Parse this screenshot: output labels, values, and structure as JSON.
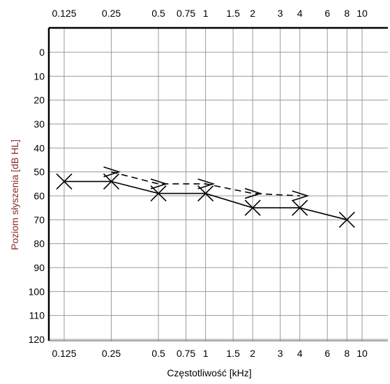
{
  "chart_data": {
    "type": "line",
    "xlabel": "Częstotliwość [kHz]",
    "ylabel": "Poziom słyszenia [dB HL]",
    "x_scale": "log",
    "xlim": [
      0.125,
      10
    ],
    "ylim": [
      120,
      -10
    ],
    "y_inverted": true,
    "grid": true,
    "x_ticks": [
      "0.125",
      "0.25",
      "0.5",
      "0.75",
      "1",
      "1.5",
      "2",
      "3",
      "4",
      "6",
      "8",
      "10"
    ],
    "y_ticks": [
      "0",
      "10",
      "20",
      "30",
      "40",
      "50",
      "60",
      "70",
      "80",
      "90",
      "100",
      "110",
      "120"
    ],
    "series": [
      {
        "marker": "x",
        "line_style": "solid",
        "x": [
          0.125,
          0.25,
          0.5,
          1,
          2,
          4,
          8
        ],
        "y": [
          54,
          54,
          59,
          59,
          65,
          65,
          70
        ]
      },
      {
        "marker": ">",
        "line_style": "dashed",
        "x": [
          0.25,
          0.5,
          1,
          2,
          4
        ],
        "y": [
          50,
          55,
          55,
          59,
          60
        ]
      }
    ],
    "colors": {
      "ylabel": "#8b2a2a",
      "ink": "#000000",
      "grid": "#9a9a9a"
    }
  }
}
